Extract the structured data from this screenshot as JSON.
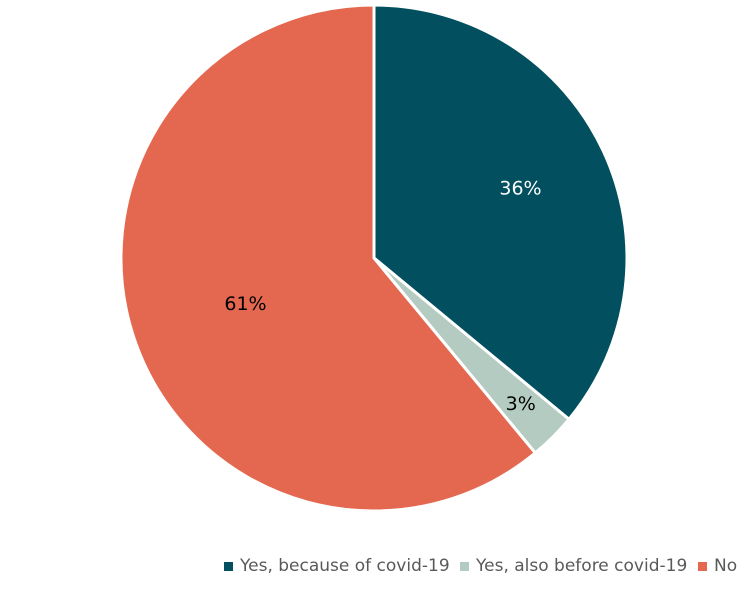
{
  "chart_data": {
    "type": "pie",
    "title": "",
    "series": [
      {
        "name": "Yes, because of covid-19",
        "value": 36,
        "label": "36%",
        "color": "#02505F"
      },
      {
        "name": "Yes, also before covid-19",
        "value": 3,
        "label": "3%",
        "color": "#B3CBC0"
      },
      {
        "name": "No",
        "value": 61,
        "label": "61%",
        "color": "#E4684F"
      }
    ],
    "legend_position": "bottom",
    "start_angle_deg": 0,
    "direction": "clockwise"
  }
}
